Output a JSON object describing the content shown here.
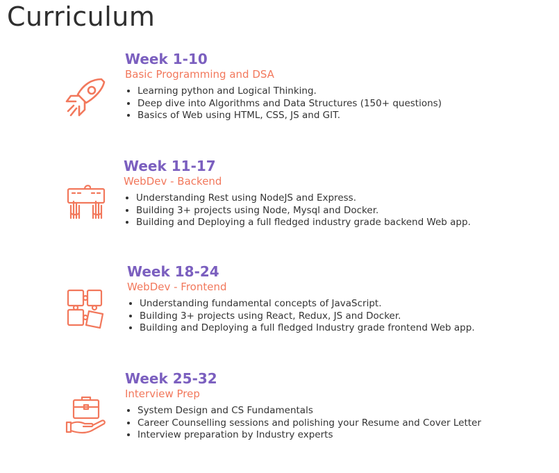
{
  "page": {
    "title": "Curriculum"
  },
  "colors": {
    "accent_purple": "#7b5fbf",
    "accent_orange": "#f2785c",
    "text": "#333333"
  },
  "sections": [
    {
      "icon": "rocket-icon",
      "week": "Week 1-10",
      "subtitle": "Basic Programming and DSA",
      "points": [
        "Learning python and Logical Thinking.",
        "Deep dive into Algorithms and Data Structures (150+ questions)",
        "Basics of Web using HTML, CSS, JS and GIT."
      ]
    },
    {
      "icon": "keyboard-hands-icon",
      "week": "Week 11-17",
      "subtitle": "WebDev - Backend",
      "points": [
        "Understanding Rest using NodeJS and Express.",
        "Building 3+ projects using Node, Mysql and Docker.",
        "Building and Deploying a full fledged industry grade backend Web app."
      ]
    },
    {
      "icon": "puzzle-icon",
      "week": "Week 18-24",
      "subtitle": "WebDev - Frontend",
      "points": [
        "Understanding fundamental concepts of JavaScript.",
        "Building 3+ projects using React, Redux, JS and Docker.",
        "Building and Deploying a full fledged Industry grade frontend Web app."
      ]
    },
    {
      "icon": "briefcase-hand-icon",
      "week": "Week 25-32",
      "subtitle": "Interview Prep",
      "points": [
        "System Design and CS Fundamentals",
        "Career Counselling sessions and polishing your Resume and Cover Letter",
        "Interview preparation by Industry experts"
      ]
    }
  ]
}
